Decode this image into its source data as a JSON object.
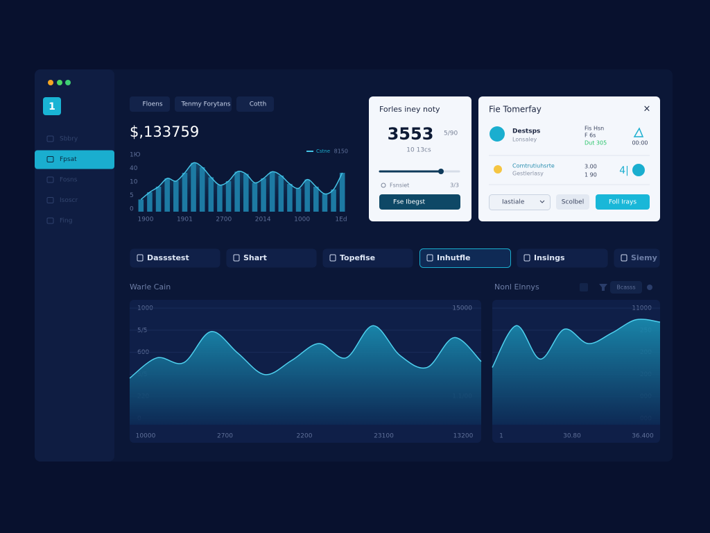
{
  "sidebar": {
    "logo": "1",
    "items": [
      "Sbbry",
      "Fpsat",
      "Fosns",
      "Isoscr",
      "Fing"
    ],
    "active_item": 1
  },
  "top_tabs": [
    "Floens",
    "Tenmy Forytans",
    "Cotth"
  ],
  "balance": "$,133759",
  "card_1": {
    "title": "Forles iney noty",
    "value": "3553",
    "side": "5/90",
    "sub": "10 13cs",
    "label": "Fsnsiet",
    "label_value": "3/3",
    "button": "Fse Ibegst"
  },
  "card_2": {
    "title": "Fie Tomerfay",
    "close": "×",
    "rows": [
      {
        "name": "Destsps",
        "sub": "Lonsaley",
        "info": [
          "Fis Hsn",
          "F 6s",
          "Dut 305"
        ],
        "time": "00:00"
      },
      {
        "name": "Comtrutiuhsrte",
        "sub": "Gestlerlasy",
        "info": [
          "3.00",
          "1 90"
        ],
        "badge": "4|"
      }
    ],
    "select": "Iastiale",
    "button_1": "Scolbel",
    "button_2": "Foll Irays"
  },
  "tabs": [
    "Dassstest",
    "Shart",
    "Topefise",
    "Inhutfle",
    "Insings",
    "Siemy"
  ],
  "active_tab": 3,
  "section_1": "Warle Cain",
  "section_2": "Nonl Elnnys",
  "filter": "Bcasss",
  "chart_data": [
    {
      "type": "bar",
      "legend": "Cstne",
      "legend_value": "8150",
      "color": "#1d7aa3",
      "line_color": "#45c3e6",
      "values": [
        22,
        35,
        45,
        60,
        55,
        70,
        88,
        80,
        62,
        48,
        55,
        72,
        68,
        52,
        60,
        72,
        65,
        50,
        42,
        58,
        45,
        32,
        40,
        70
      ],
      "ylim": [
        0,
        100
      ],
      "y_labels": [
        "1Ю",
        "40",
        "10",
        "5",
        "0"
      ],
      "x_labels": [
        "1900",
        "1901",
        "2700",
        "2014",
        "1000",
        "1Ed"
      ]
    },
    {
      "type": "area",
      "color": "#1a8fb3",
      "line_color": "#4fd0ee",
      "values": [
        39,
        56,
        52,
        78,
        60,
        42,
        54,
        68,
        56,
        83,
        58,
        48,
        73,
        53
      ],
      "ylim": [
        0,
        100
      ],
      "y_labels": [
        "1000",
        "5/5",
        "600",
        "5/5",
        "220",
        "0"
      ],
      "y2_labels": [
        "15000",
        null,
        null,
        null,
        "1.1/00",
        null
      ],
      "x_labels": [
        "10000",
        "2700",
        "2200",
        "23100",
        "13200"
      ]
    },
    {
      "type": "area",
      "color": "#1a8fb3",
      "line_color": "#4fd0ee",
      "values": [
        48,
        83,
        55,
        80,
        68,
        77,
        88,
        86
      ],
      "ylim": [
        0,
        100
      ],
      "y2_labels": [
        "11000",
        "250",
        "200",
        "200",
        "000",
        "000"
      ],
      "x_labels": [
        "1",
        "30.80",
        "36.400"
      ]
    }
  ]
}
